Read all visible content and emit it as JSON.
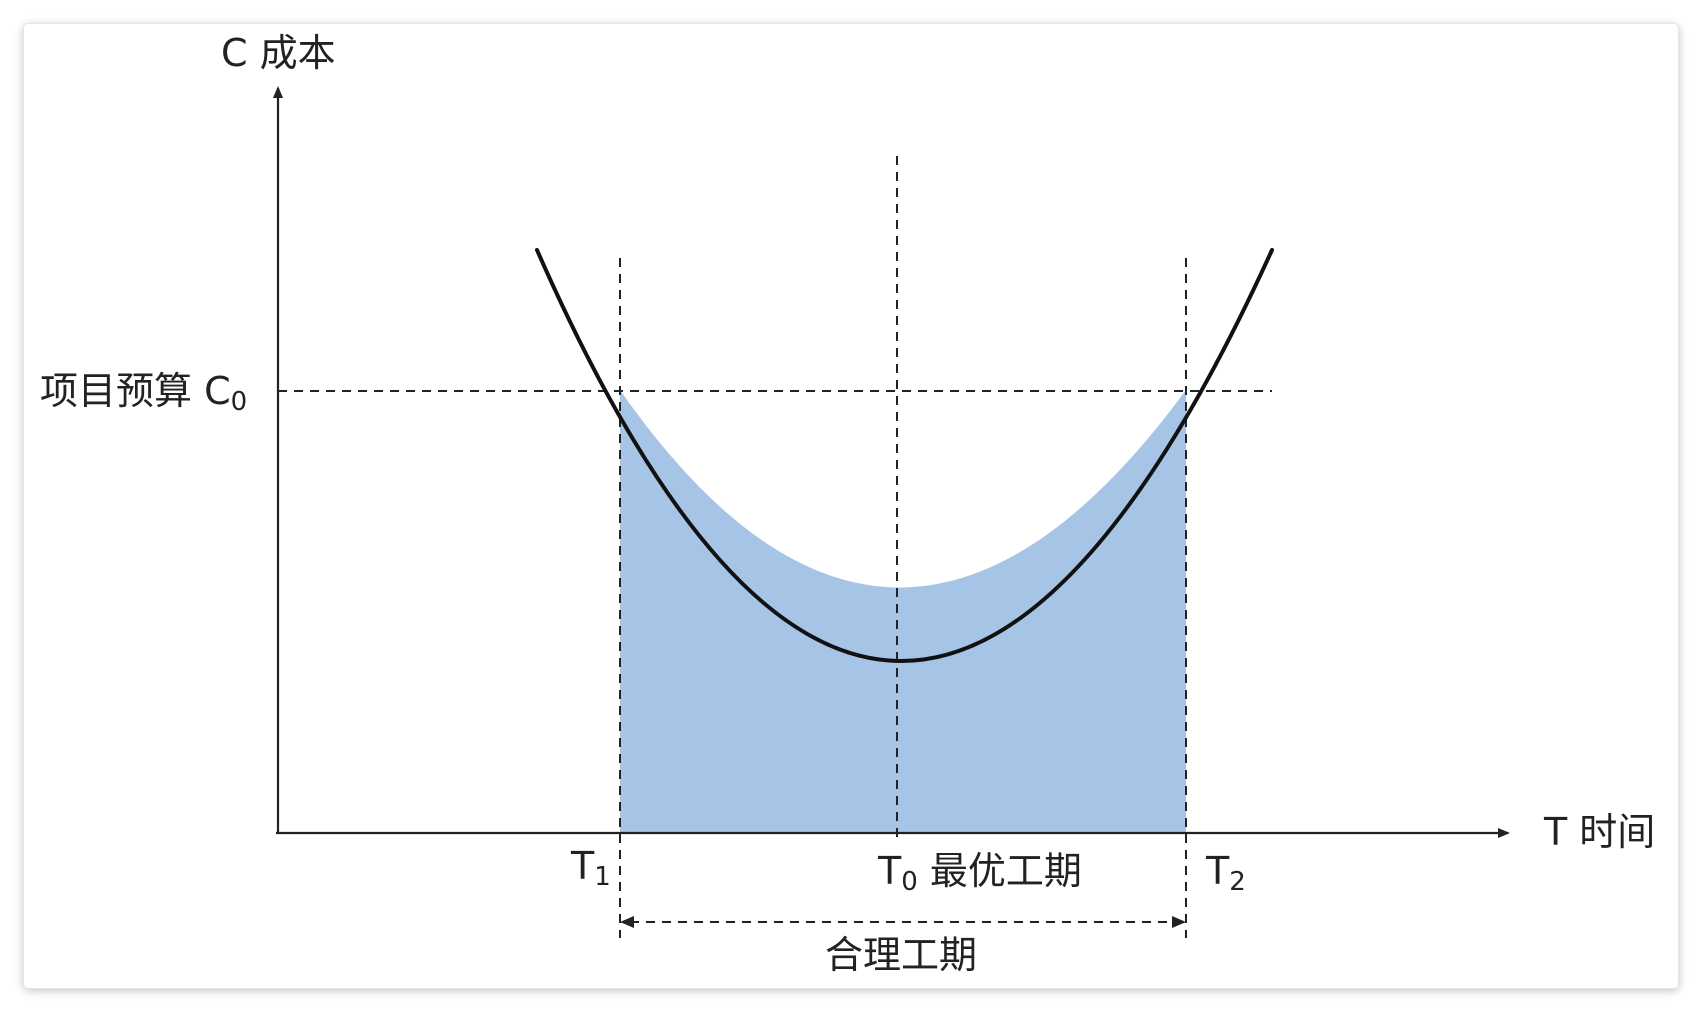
{
  "colors": {
    "curve": "#111111",
    "fill": "#a6c4e6",
    "axis": "#222222",
    "dashed": "#222222"
  },
  "axes": {
    "y_label": "C 成本",
    "x_label": "T 时间"
  },
  "budget": {
    "label": "项目预算 C",
    "subscript": "0"
  },
  "markers": {
    "t1": {
      "main": "T",
      "sub": "1"
    },
    "t0": {
      "main": "T",
      "sub": "0",
      "suffix": " 最优工期"
    },
    "t2": {
      "main": "T",
      "sub": "2"
    }
  },
  "range_label": "合理工期"
}
